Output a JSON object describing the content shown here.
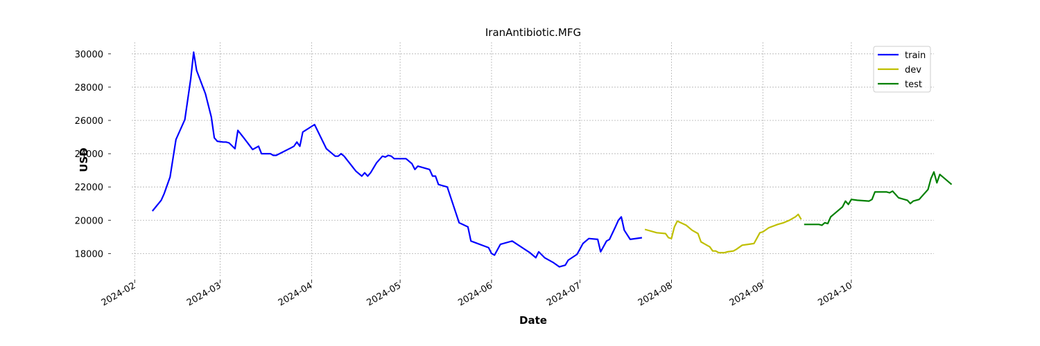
{
  "chart_data": {
    "type": "line",
    "title": "IranAntibiotic.MFG",
    "xlabel": "Date",
    "ylabel": "USD",
    "x_range": [
      "2024-01-31",
      "2024-10-29"
    ],
    "ylim": [
      16600,
      30700
    ],
    "y_ticks": [
      18000,
      20000,
      22000,
      24000,
      26000,
      28000,
      30000
    ],
    "x_ticks": [
      "2024-02",
      "2024-03",
      "2024-04",
      "2024-05",
      "2024-06",
      "2024-07",
      "2024-08",
      "2024-09",
      "2024-10"
    ],
    "grid": true,
    "legend_position": "top-right",
    "series": [
      {
        "name": "train",
        "color": "#0000ff",
        "points": [
          [
            "2024-02-07",
            20550
          ],
          [
            "2024-02-10",
            21200
          ],
          [
            "2024-02-11",
            21600
          ],
          [
            "2024-02-13",
            22600
          ],
          [
            "2024-02-15",
            24850
          ],
          [
            "2024-02-18",
            26050
          ],
          [
            "2024-02-20",
            28500
          ],
          [
            "2024-02-21",
            30100
          ],
          [
            "2024-02-22",
            29000
          ],
          [
            "2024-02-25",
            27600
          ],
          [
            "2024-02-27",
            26200
          ],
          [
            "2024-02-28",
            24950
          ],
          [
            "2024-02-29",
            24750
          ],
          [
            "2024-03-02",
            24700
          ],
          [
            "2024-03-03",
            24700
          ],
          [
            "2024-03-04",
            24650
          ],
          [
            "2024-03-06",
            24300
          ],
          [
            "2024-03-07",
            25400
          ],
          [
            "2024-03-09",
            24950
          ],
          [
            "2024-03-12",
            24250
          ],
          [
            "2024-03-14",
            24450
          ],
          [
            "2024-03-15",
            24000
          ],
          [
            "2024-03-18",
            24000
          ],
          [
            "2024-03-19",
            23900
          ],
          [
            "2024-03-20",
            23900
          ],
          [
            "2024-03-25",
            24350
          ],
          [
            "2024-03-26",
            24450
          ],
          [
            "2024-03-27",
            24700
          ],
          [
            "2024-03-28",
            24450
          ],
          [
            "2024-03-29",
            25300
          ],
          [
            "2024-04-02",
            25750
          ],
          [
            "2024-04-06",
            24300
          ],
          [
            "2024-04-09",
            23850
          ],
          [
            "2024-04-10",
            23850
          ],
          [
            "2024-04-11",
            24000
          ],
          [
            "2024-04-12",
            23850
          ],
          [
            "2024-04-16",
            22950
          ],
          [
            "2024-04-18",
            22650
          ],
          [
            "2024-04-19",
            22850
          ],
          [
            "2024-04-20",
            22650
          ],
          [
            "2024-04-21",
            22850
          ],
          [
            "2024-04-23",
            23450
          ],
          [
            "2024-04-25",
            23850
          ],
          [
            "2024-04-26",
            23800
          ],
          [
            "2024-04-27",
            23900
          ],
          [
            "2024-04-28",
            23850
          ],
          [
            "2024-04-29",
            23700
          ],
          [
            "2024-05-03",
            23700
          ],
          [
            "2024-05-05",
            23400
          ],
          [
            "2024-05-06",
            23050
          ],
          [
            "2024-05-07",
            23250
          ],
          [
            "2024-05-11",
            23050
          ],
          [
            "2024-05-12",
            22650
          ],
          [
            "2024-05-13",
            22650
          ],
          [
            "2024-05-14",
            22150
          ],
          [
            "2024-05-17",
            22000
          ],
          [
            "2024-05-21",
            19850
          ],
          [
            "2024-05-24",
            19600
          ],
          [
            "2024-05-25",
            18750
          ],
          [
            "2024-05-31",
            18350
          ],
          [
            "2024-06-01",
            18000
          ],
          [
            "2024-06-02",
            17900
          ],
          [
            "2024-06-04",
            18550
          ],
          [
            "2024-06-07",
            18700
          ],
          [
            "2024-06-08",
            18750
          ],
          [
            "2024-06-14",
            18050
          ],
          [
            "2024-06-16",
            17750
          ],
          [
            "2024-06-17",
            18100
          ],
          [
            "2024-06-19",
            17750
          ],
          [
            "2024-06-22",
            17450
          ],
          [
            "2024-06-24",
            17200
          ],
          [
            "2024-06-26",
            17300
          ],
          [
            "2024-06-27",
            17600
          ],
          [
            "2024-06-30",
            17950
          ],
          [
            "2024-07-02",
            18600
          ],
          [
            "2024-07-04",
            18900
          ],
          [
            "2024-07-07",
            18850
          ],
          [
            "2024-07-08",
            18100
          ],
          [
            "2024-07-10",
            18750
          ],
          [
            "2024-07-11",
            18850
          ],
          [
            "2024-07-13",
            19600
          ],
          [
            "2024-07-14",
            20000
          ],
          [
            "2024-07-15",
            20200
          ],
          [
            "2024-07-16",
            19400
          ],
          [
            "2024-07-18",
            18850
          ],
          [
            "2024-07-22",
            18950
          ]
        ]
      },
      {
        "name": "dev",
        "color": "#bfbf00",
        "points": [
          [
            "2024-07-23",
            19450
          ],
          [
            "2024-07-27",
            19250
          ],
          [
            "2024-07-30",
            19200
          ],
          [
            "2024-07-31",
            18950
          ],
          [
            "2024-08-01",
            18900
          ],
          [
            "2024-08-02",
            19600
          ],
          [
            "2024-08-03",
            19950
          ],
          [
            "2024-08-06",
            19700
          ],
          [
            "2024-08-08",
            19400
          ],
          [
            "2024-08-10",
            19200
          ],
          [
            "2024-08-11",
            18700
          ],
          [
            "2024-08-14",
            18400
          ],
          [
            "2024-08-15",
            18150
          ],
          [
            "2024-08-16",
            18150
          ],
          [
            "2024-08-17",
            18050
          ],
          [
            "2024-08-19",
            18050
          ],
          [
            "2024-08-20",
            18100
          ],
          [
            "2024-08-22",
            18150
          ],
          [
            "2024-08-23",
            18250
          ],
          [
            "2024-08-25",
            18500
          ],
          [
            "2024-08-27",
            18550
          ],
          [
            "2024-08-29",
            18600
          ],
          [
            "2024-08-31",
            19250
          ],
          [
            "2024-09-01",
            19300
          ],
          [
            "2024-09-03",
            19550
          ],
          [
            "2024-09-06",
            19750
          ],
          [
            "2024-09-08",
            19850
          ],
          [
            "2024-09-10",
            20000
          ],
          [
            "2024-09-12",
            20200
          ],
          [
            "2024-09-13",
            20350
          ],
          [
            "2024-09-14",
            20050
          ]
        ]
      },
      {
        "name": "test",
        "color": "#008000",
        "points": [
          [
            "2024-09-15",
            19750
          ],
          [
            "2024-09-17",
            19750
          ],
          [
            "2024-09-20",
            19750
          ],
          [
            "2024-09-21",
            19700
          ],
          [
            "2024-09-22",
            19850
          ],
          [
            "2024-09-23",
            19800
          ],
          [
            "2024-09-24",
            20200
          ],
          [
            "2024-09-26",
            20500
          ],
          [
            "2024-09-28",
            20800
          ],
          [
            "2024-09-29",
            21150
          ],
          [
            "2024-09-30",
            20950
          ],
          [
            "2024-10-01",
            21250
          ],
          [
            "2024-10-03",
            21200
          ],
          [
            "2024-10-07",
            21150
          ],
          [
            "2024-10-08",
            21250
          ],
          [
            "2024-10-09",
            21700
          ],
          [
            "2024-10-13",
            21700
          ],
          [
            "2024-10-14",
            21650
          ],
          [
            "2024-10-15",
            21750
          ],
          [
            "2024-10-16",
            21550
          ],
          [
            "2024-10-17",
            21350
          ],
          [
            "2024-10-20",
            21200
          ],
          [
            "2024-10-21",
            21000
          ],
          [
            "2024-10-22",
            21150
          ],
          [
            "2024-10-24",
            21250
          ],
          [
            "2024-10-26",
            21650
          ],
          [
            "2024-10-27",
            21850
          ],
          [
            "2024-10-28",
            22500
          ],
          [
            "2024-10-29",
            22900
          ],
          [
            "2024-10-30",
            22250
          ],
          [
            "2024-10-31",
            22750
          ],
          [
            "2024-11-01",
            22600
          ],
          [
            "2024-11-04",
            22150
          ]
        ]
      }
    ]
  }
}
